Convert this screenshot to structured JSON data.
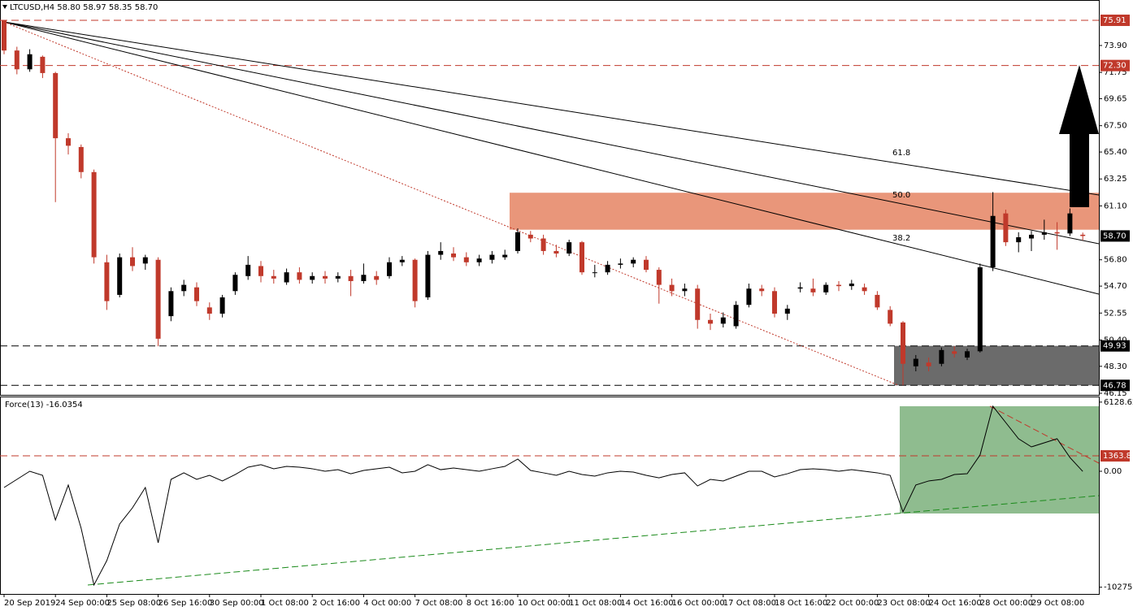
{
  "chart_data": [
    {
      "type": "candlestick",
      "title": "LTCUSD,H4  58.80 58.97 58.35 58.70",
      "categories": [
        "20 Sep 2019",
        null,
        null,
        null,
        "24 Sep 00:00",
        null,
        null,
        null,
        "25 Sep 08:00",
        null,
        null,
        null,
        "26 Sep 16:00",
        null,
        null,
        null,
        "30 Sep 00:00",
        null,
        null,
        null,
        "1 Oct 08:00",
        null,
        null,
        null,
        "2 Oct 16:00",
        null,
        null,
        null,
        "4 Oct 00:00",
        null,
        null,
        null,
        "7 Oct 08:00",
        null,
        null,
        null,
        "8 Oct 16:00",
        null,
        null,
        null,
        "10 Oct 00:00",
        null,
        null,
        null,
        "11 Oct 08:00",
        null,
        null,
        null,
        "14 Oct 16:00",
        null,
        null,
        null,
        "16 Oct 00:00",
        null,
        null,
        null,
        "17 Oct 08:00",
        null,
        null,
        null,
        "18 Oct 16:00",
        null,
        null,
        null,
        "22 Oct 00:00",
        null,
        null,
        null,
        "23 Oct 08:00",
        null,
        null,
        null,
        "24 Oct 16:00",
        null,
        null,
        null,
        "28 Oct 00:00",
        null,
        null,
        null,
        "29 Oct 08:00",
        null,
        null,
        null,
        null
      ],
      "open": [
        75.9,
        73.5,
        72.0,
        73.0,
        71.7,
        66.5,
        65.8,
        63.8,
        56.6,
        54.0,
        57.0,
        56.5,
        56.8,
        52.3,
        54.3,
        54.6,
        53.0,
        52.5,
        54.3,
        55.5,
        56.3,
        55.5,
        55.0,
        55.8,
        55.2,
        55.5,
        55.3,
        55.5,
        55.1,
        55.5,
        55.5,
        56.6,
        56.8,
        53.8,
        57.2,
        57.3,
        57.0,
        56.6,
        56.8,
        57.0,
        57.5,
        58.8,
        58.5,
        57.5,
        57.3,
        58.2,
        55.8,
        55.8,
        56.4,
        56.5,
        56.8,
        56.0,
        54.8,
        54.3,
        54.5,
        52.0,
        51.7,
        51.5,
        53.2,
        54.5,
        54.3,
        52.5,
        54.5,
        54.5,
        54.2,
        54.8,
        54.7,
        54.6,
        54.0,
        52.8,
        51.8,
        48.3,
        48.6,
        48.5,
        49.5,
        49.0,
        49.5,
        56.2,
        60.5,
        58.2,
        58.5,
        58.8,
        59.0,
        58.9,
        58.8
      ],
      "high": [
        75.91,
        73.8,
        73.6,
        73.1,
        71.8,
        66.9,
        66.0,
        64.0,
        57.2,
        57.3,
        57.8,
        57.2,
        57.0,
        54.6,
        55.2,
        55.0,
        53.4,
        54.0,
        55.8,
        57.1,
        56.7,
        56.0,
        56.1,
        56.2,
        55.8,
        55.9,
        55.8,
        56.0,
        56.5,
        55.9,
        57.0,
        57.1,
        56.9,
        57.5,
        58.2,
        57.8,
        57.4,
        57.2,
        57.5,
        57.6,
        59.3,
        59.1,
        58.8,
        58.0,
        58.4,
        58.3,
        56.4,
        56.7,
        56.9,
        57.0,
        57.1,
        56.2,
        55.3,
        54.9,
        54.8,
        52.5,
        52.6,
        53.5,
        54.9,
        54.8,
        54.6,
        53.2,
        55.0,
        55.3,
        55.0,
        55.1,
        55.2,
        54.9,
        54.3,
        53.1,
        51.9,
        49.2,
        49.0,
        49.8,
        49.9,
        49.7,
        56.5,
        62.2,
        60.8,
        59.0,
        59.1,
        60.0,
        59.8,
        60.9,
        58.97
      ],
      "low": [
        73.2,
        71.6,
        71.8,
        71.3,
        61.4,
        65.2,
        63.3,
        56.5,
        52.8,
        53.8,
        55.9,
        56.0,
        49.9,
        51.9,
        53.9,
        53.1,
        52.0,
        52.2,
        54.0,
        55.2,
        55.0,
        54.9,
        54.8,
        54.9,
        54.9,
        54.9,
        55.0,
        53.9,
        54.9,
        54.8,
        55.3,
        56.3,
        53.0,
        53.6,
        56.8,
        56.7,
        56.3,
        56.3,
        56.5,
        56.8,
        57.3,
        58.2,
        57.2,
        57.0,
        57.1,
        55.6,
        55.4,
        55.6,
        56.1,
        56.2,
        55.8,
        53.3,
        53.9,
        53.9,
        51.3,
        51.2,
        51.4,
        51.3,
        53.0,
        53.9,
        52.2,
        52.0,
        54.2,
        53.9,
        54.0,
        54.3,
        54.4,
        54.0,
        52.8,
        51.5,
        46.78,
        47.9,
        47.9,
        48.3,
        49.0,
        48.8,
        49.4,
        55.9,
        57.9,
        57.4,
        57.5,
        58.4,
        57.6,
        58.7,
        58.35
      ],
      "close": [
        73.5,
        72.0,
        73.2,
        71.7,
        66.5,
        65.9,
        63.8,
        57.0,
        53.5,
        57.0,
        56.3,
        57.0,
        50.5,
        54.3,
        54.8,
        53.5,
        52.5,
        53.8,
        55.6,
        56.4,
        55.5,
        55.3,
        55.8,
        55.2,
        55.5,
        55.3,
        55.5,
        55.1,
        55.6,
        55.2,
        56.6,
        56.8,
        53.5,
        57.2,
        57.5,
        57.0,
        56.6,
        56.9,
        57.2,
        57.2,
        59.0,
        58.5,
        57.5,
        57.3,
        58.2,
        55.8,
        55.8,
        56.4,
        56.5,
        56.8,
        56.0,
        54.8,
        54.3,
        54.5,
        52.0,
        51.7,
        52.2,
        53.2,
        54.5,
        54.3,
        52.5,
        52.9,
        54.6,
        54.2,
        54.8,
        54.7,
        54.9,
        54.3,
        53.0,
        51.7,
        48.5,
        48.9,
        48.3,
        49.6,
        49.3,
        49.5,
        56.2,
        60.3,
        58.2,
        58.6,
        58.8,
        59.0,
        58.9,
        60.5,
        58.7
      ],
      "up_color": "#000000",
      "down_color": "#c0392b",
      "ylim": [
        46.15,
        77.4
      ],
      "yticks": [
        {
          "value": 73.9,
          "label": "73.90"
        },
        71.75,
        69.65,
        {
          "value": 67.5,
          "label": "67.50"
        },
        {
          "value": 65.4,
          "label": "65.40"
        },
        63.25,
        {
          "value": 61.1,
          "label": "61.10"
        },
        {
          "value": 56.8,
          "label": "56.80"
        },
        {
          "value": 54.7,
          "label": "54.70"
        },
        52.55,
        {
          "value": 50.4,
          "label": "50.40"
        },
        {
          "value": 48.3,
          "label": "48.30"
        },
        46.15
      ],
      "levels": [
        {
          "value": 75.91,
          "color": "#c0392b",
          "line": "dashed"
        },
        {
          "value": 72.3,
          "label": "72.30",
          "color": "#c0392b",
          "line": "dashed"
        },
        {
          "value": 58.7,
          "label": "58.70",
          "color": "#000000",
          "line": "none"
        },
        {
          "value": 49.93,
          "color": "#000000",
          "line": "dashed"
        },
        {
          "value": 46.78,
          "color": "#000000",
          "line": "dashed"
        }
      ],
      "zones": [
        {
          "ylim": [
            59.2,
            62.15
          ],
          "color": "#e9967a"
        },
        {
          "ylim": [
            46.78,
            49.93
          ],
          "color": "#6b6b6b"
        }
      ],
      "annotations": [
        "61.8",
        "50.0",
        "38.2"
      ]
    },
    {
      "type": "line",
      "title": "Force(13) -16.0354",
      "color": "#000000",
      "values": [
        -1440,
        -720,
        0,
        -360,
        -4320,
        -1220,
        -5040,
        -10080,
        -7920,
        -4680,
        -3240,
        -1440,
        -6340,
        -720,
        -140,
        -720,
        -360,
        -860,
        -290,
        360,
        580,
        220,
        430,
        360,
        220,
        0,
        140,
        -220,
        70,
        220,
        360,
        -140,
        0,
        580,
        140,
        290,
        140,
        0,
        220,
        430,
        1080,
        70,
        -140,
        -360,
        0,
        -290,
        -430,
        -140,
        0,
        -70,
        -360,
        -580,
        -290,
        -140,
        -1300,
        -720,
        -860,
        -430,
        0,
        0,
        -500,
        -220,
        140,
        220,
        140,
        0,
        140,
        0,
        -140,
        -360,
        -3600,
        -1220,
        -860,
        -720,
        -290,
        -220,
        1440,
        5760,
        4320,
        2880,
        2160,
        2520,
        2880,
        1220,
        -16.0354
      ],
      "ylim": [
        -10872,
        6552
      ],
      "yticks": [
        6128.623,
        {
          "value": 0,
          "label": "0.00"
        },
        -10275.9
      ],
      "levels": [
        {
          "value": 1363.81,
          "color": "#c0392b",
          "line": "dashed"
        }
      ],
      "zones": [
        {
          "ylim": [
            -3744,
            5760
          ],
          "color": "#8fbc8f"
        }
      ]
    }
  ]
}
